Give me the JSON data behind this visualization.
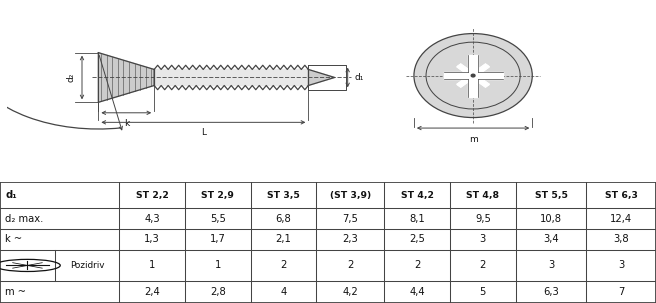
{
  "table_headers_st": [
    "ST 2,2",
    "ST 2,9",
    "ST 3,5",
    "(ST 3,9)",
    "ST 4,2",
    "ST 4,8",
    "ST 5,5",
    "ST 6,3"
  ],
  "row_data": [
    [
      "4,3",
      "5,5",
      "6,8",
      "7,5",
      "8,1",
      "9,5",
      "10,8",
      "12,4"
    ],
    [
      "1,3",
      "1,7",
      "2,1",
      "2,3",
      "2,5",
      "3",
      "3,4",
      "3,8"
    ],
    [
      "1",
      "1",
      "2",
      "2",
      "2",
      "2",
      "3",
      "3"
    ],
    [
      "2,4",
      "2,8",
      "4",
      "4,2",
      "4,4",
      "5",
      "6,3",
      "7"
    ]
  ],
  "bg_color": "#ffffff",
  "line_color": "#444444",
  "text_color": "#111111",
  "fill_color": "#cccccc"
}
